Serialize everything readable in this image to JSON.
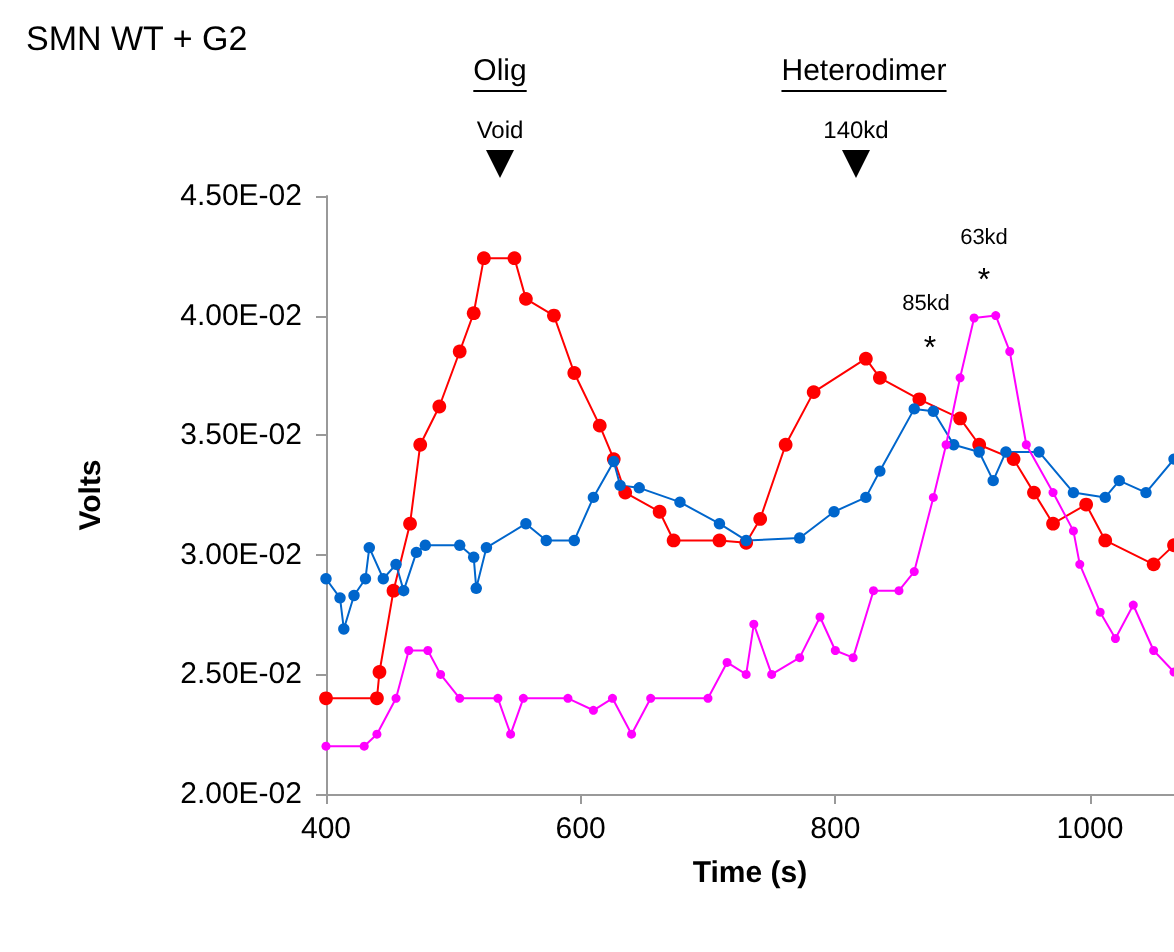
{
  "chart_data": {
    "type": "line",
    "title": "SMN WT + G2",
    "xlabel": "Time (s)",
    "ylabel": "Volts",
    "xlim": [
      400,
      1066
    ],
    "xticks": [
      400,
      600,
      800,
      1000
    ],
    "ylim": [
      0.02,
      0.045
    ],
    "yticks": [
      {
        "value": 0.02,
        "label": "2.00E-02"
      },
      {
        "value": 0.025,
        "label": "2.50E-02"
      },
      {
        "value": 0.03,
        "label": "3.00E-02"
      },
      {
        "value": 0.035,
        "label": "3.50E-02"
      },
      {
        "value": 0.04,
        "label": "4.00E-02"
      },
      {
        "value": 0.045,
        "label": "4.50E-02"
      }
    ],
    "grid": false,
    "marker": "circle",
    "line_style": "solid",
    "annotations": [
      "Olig",
      "Void",
      "Heterodimer",
      "140kd",
      "85kd",
      "*",
      "63kd",
      "*"
    ],
    "series": [
      {
        "color": "#ff0000",
        "x": [
          400,
          440,
          442,
          453,
          466,
          474,
          489,
          505,
          516,
          524,
          548,
          557,
          579,
          595,
          615,
          626,
          635,
          662,
          673,
          709,
          730,
          741,
          761,
          783,
          824,
          835,
          866,
          898,
          913,
          940,
          956,
          971,
          997,
          1012,
          1050,
          1066
        ],
        "values": [
          0.024,
          0.024,
          0.0251,
          0.0285,
          0.0313,
          0.0346,
          0.0362,
          0.0385,
          0.0401,
          0.0424,
          0.0424,
          0.0407,
          0.04,
          0.0376,
          0.0354,
          0.034,
          0.0326,
          0.0318,
          0.0306,
          0.0306,
          0.0305,
          0.0315,
          0.0346,
          0.0368,
          0.0382,
          0.0374,
          0.0365,
          0.0357,
          0.0346,
          0.034,
          0.0326,
          0.0313,
          0.0321,
          0.0306,
          0.0296,
          0.0304
        ]
      },
      {
        "color": "#0066cc",
        "x": [
          400,
          411,
          414,
          422,
          431,
          434,
          445,
          455,
          461,
          471,
          478,
          505,
          516,
          518,
          526,
          557,
          573,
          595,
          610,
          626,
          631,
          646,
          678,
          709,
          730,
          772,
          799,
          824,
          835,
          862,
          877,
          893,
          913,
          924,
          934,
          960,
          987,
          1012,
          1023,
          1044,
          1066
        ],
        "values": [
          0.029,
          0.0282,
          0.0269,
          0.0283,
          0.029,
          0.0303,
          0.029,
          0.0296,
          0.0285,
          0.0301,
          0.0304,
          0.0304,
          0.0299,
          0.0286,
          0.0303,
          0.0313,
          0.0306,
          0.0306,
          0.0324,
          0.0339,
          0.0329,
          0.0328,
          0.0322,
          0.0313,
          0.0306,
          0.0307,
          0.0318,
          0.0324,
          0.0335,
          0.0361,
          0.036,
          0.0346,
          0.0343,
          0.0331,
          0.0343,
          0.0343,
          0.0326,
          0.0324,
          0.0331,
          0.0326,
          0.034
        ]
      },
      {
        "color": "#ff00ff",
        "x": [
          400,
          430,
          440,
          455,
          465,
          480,
          490,
          505,
          535,
          545,
          555,
          590,
          610,
          625,
          640,
          655,
          700,
          715,
          730,
          736,
          750,
          772,
          788,
          800,
          814,
          830,
          850,
          862,
          877,
          887,
          898,
          909,
          926,
          937,
          950,
          971,
          987,
          992,
          1008,
          1020,
          1034,
          1050,
          1066
        ],
        "values": [
          0.022,
          0.022,
          0.0225,
          0.024,
          0.026,
          0.026,
          0.025,
          0.024,
          0.024,
          0.0225,
          0.024,
          0.024,
          0.0235,
          0.024,
          0.0225,
          0.024,
          0.024,
          0.0255,
          0.025,
          0.0271,
          0.025,
          0.0257,
          0.0274,
          0.026,
          0.0257,
          0.0285,
          0.0285,
          0.0293,
          0.0324,
          0.0346,
          0.0374,
          0.0399,
          0.04,
          0.0385,
          0.0346,
          0.0326,
          0.031,
          0.0296,
          0.0276,
          0.0265,
          0.0279,
          0.026,
          0.0251
        ]
      }
    ]
  }
}
